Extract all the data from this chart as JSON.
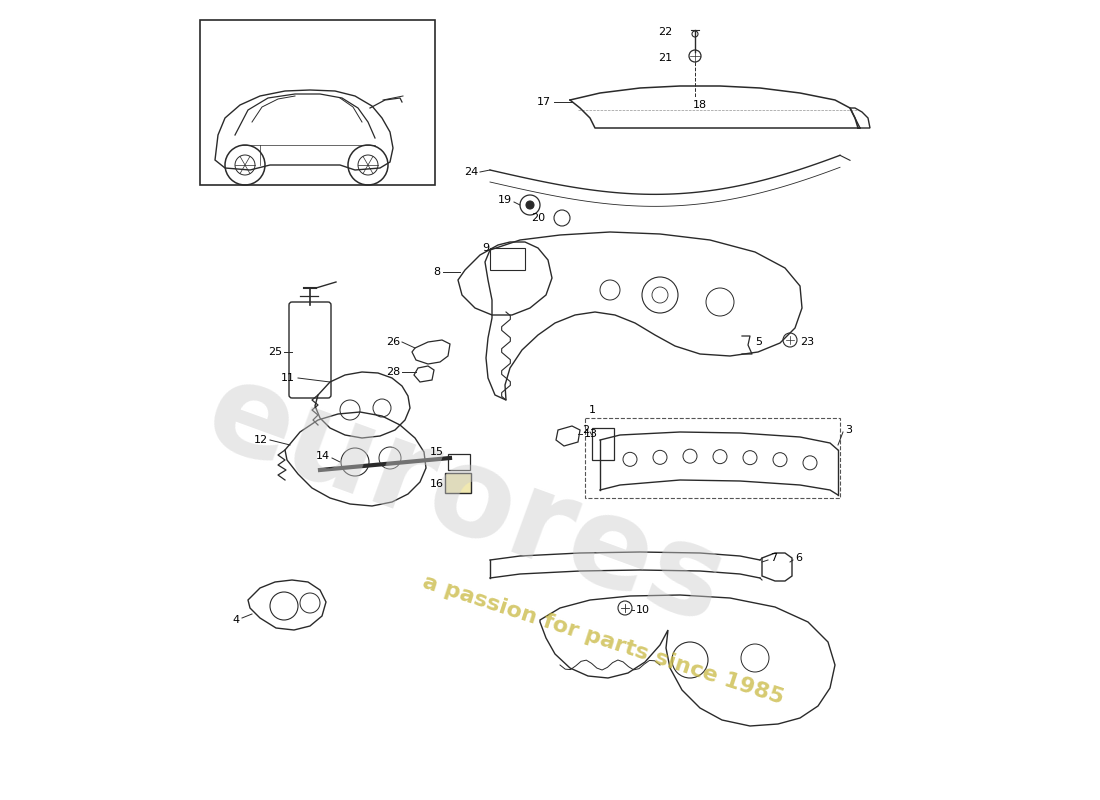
{
  "bg_color": "#ffffff",
  "line_color": "#2a2a2a",
  "fig_w": 11.0,
  "fig_h": 8.0,
  "watermark_gray_text": "eurores",
  "watermark_gray_color": "#c8c8c8",
  "watermark_yellow_text": "a passion for parts since 1985",
  "watermark_yellow_color": "#d4c060"
}
